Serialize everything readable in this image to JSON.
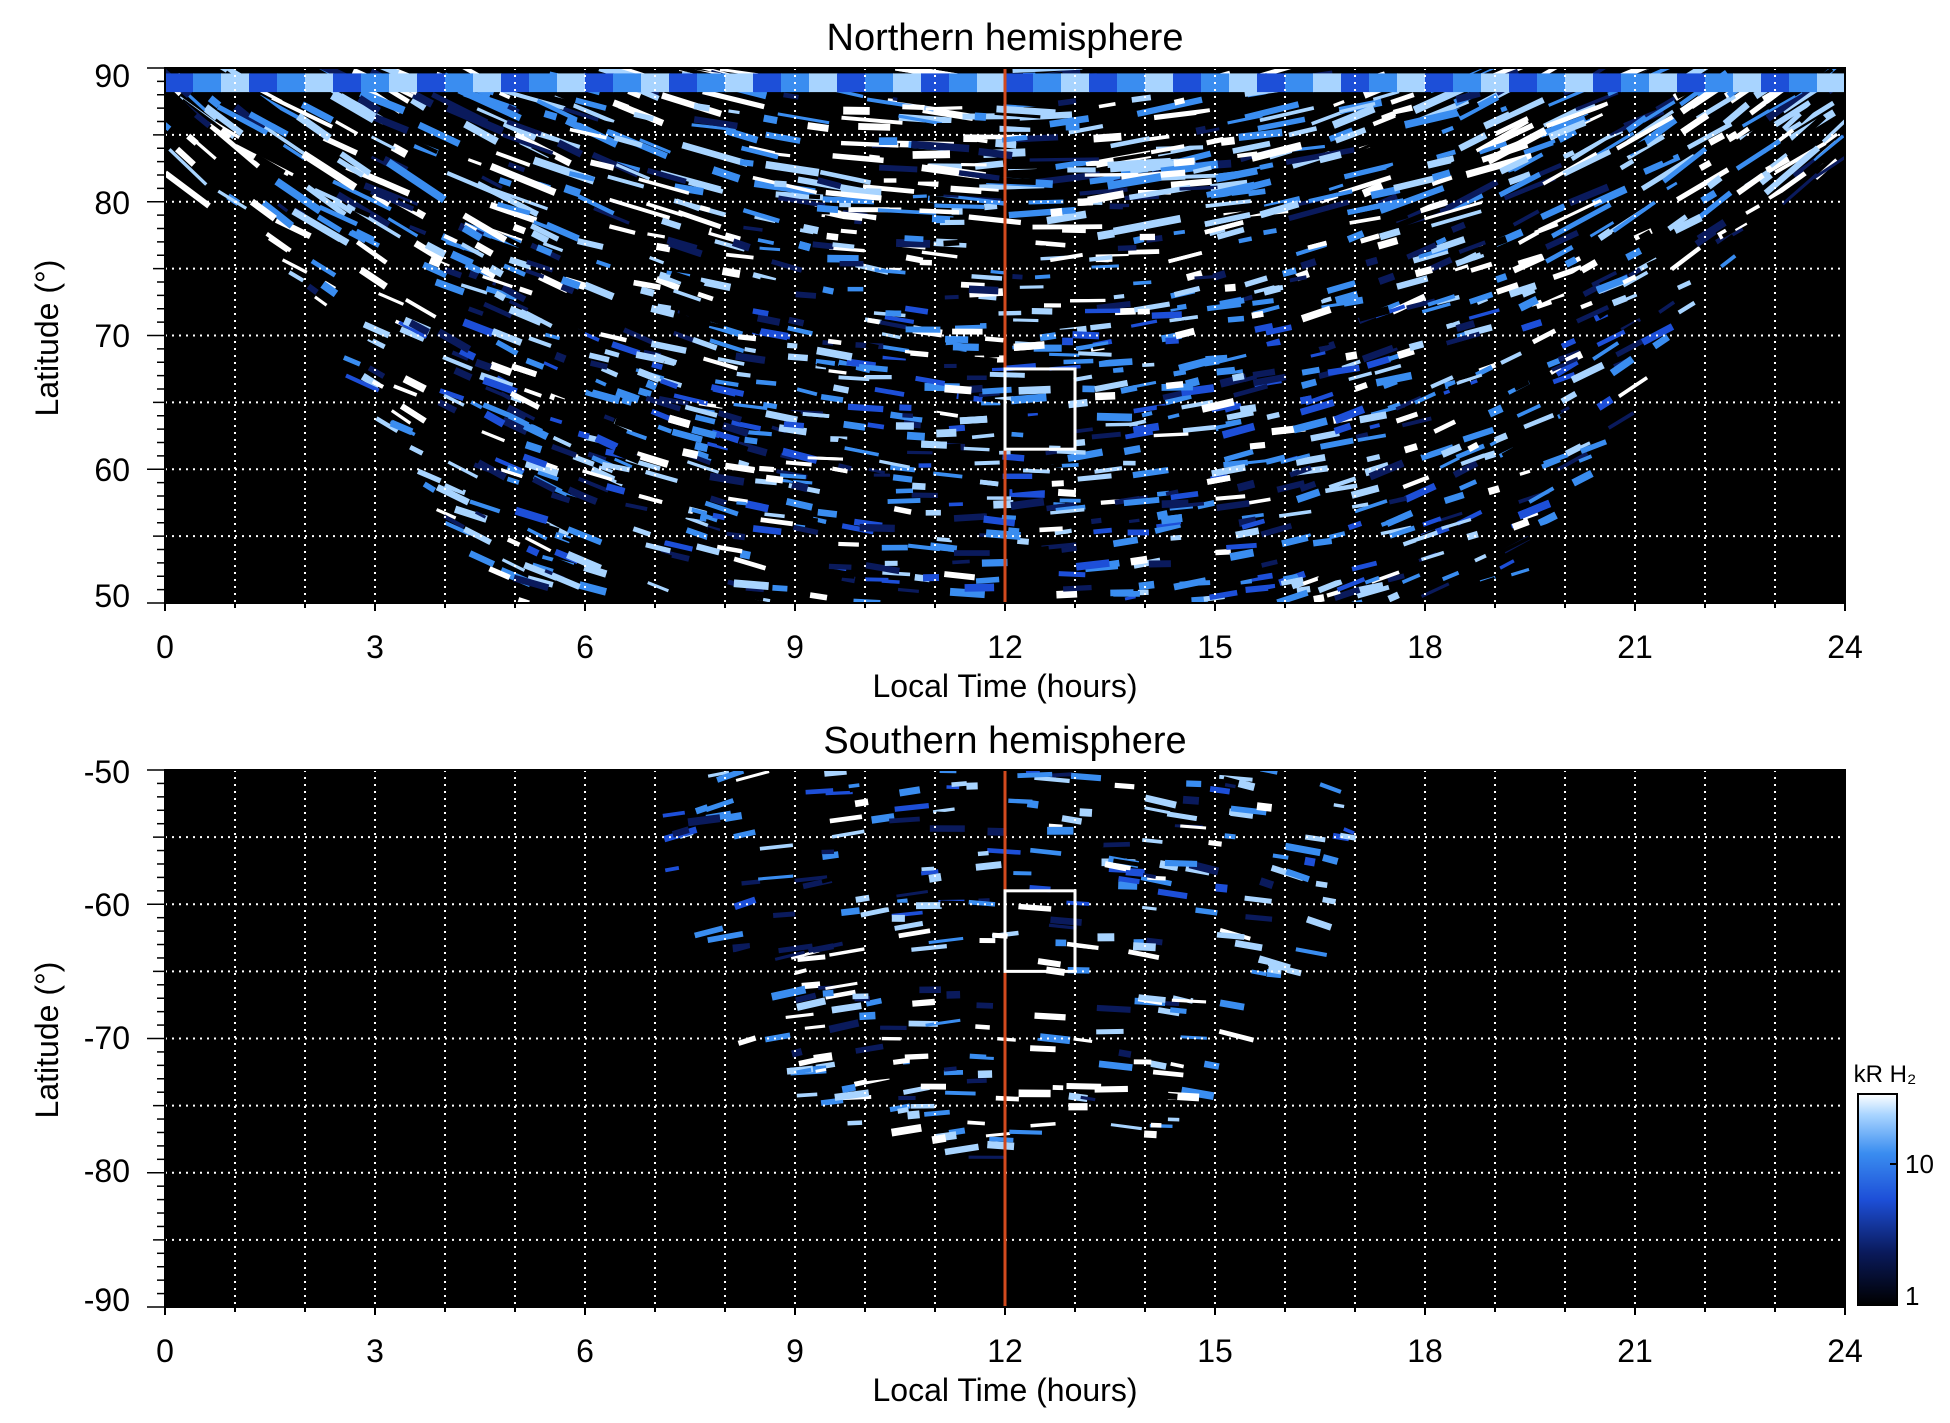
{
  "chart_data": [
    {
      "type": "heatmap",
      "title": "Northern hemisphere",
      "xlabel": "Local Time (hours)",
      "ylabel": "Latitude (°)",
      "xlim": [
        0,
        24
      ],
      "ylim": [
        50,
        90
      ],
      "xticks": [
        "0",
        "3",
        "6",
        "9",
        "12",
        "15",
        "18",
        "21",
        "24"
      ],
      "yticks": [
        "50",
        "60",
        "70",
        "80",
        "90"
      ],
      "grid": true,
      "marker_line": {
        "x": 12,
        "color": "#d24a1e"
      },
      "box": {
        "x": [
          12,
          13
        ],
        "y": [
          61.5,
          67.5
        ]
      }
    },
    {
      "type": "heatmap",
      "title": "Southern hemisphere",
      "xlabel": "Local Time (hours)",
      "ylabel": "Latitude (°)",
      "xlim": [
        0,
        24
      ],
      "ylim": [
        -90,
        -50
      ],
      "xticks": [
        "0",
        "3",
        "6",
        "9",
        "12",
        "15",
        "18",
        "21",
        "24"
      ],
      "yticks": [
        "-90",
        "-80",
        "-70",
        "-60",
        "-50"
      ],
      "grid": true,
      "marker_line": {
        "x": 12,
        "color": "#d24a1e"
      },
      "box": {
        "x": [
          12,
          13
        ],
        "y": [
          -65,
          -59
        ]
      }
    }
  ],
  "colorbar": {
    "unit": "kR H₂",
    "scale": "log",
    "ticks": [
      "1",
      "10"
    ],
    "colors": [
      "#000000",
      "#0a1a5c",
      "#1d4fd8",
      "#3a8df0",
      "#a8d4ff",
      "#ffffff"
    ]
  }
}
